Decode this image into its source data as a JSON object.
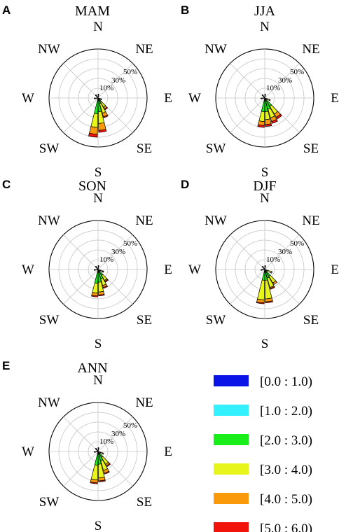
{
  "chart_data": [
    {
      "type": "windrose",
      "panel": "A",
      "title": "MAM",
      "directions": [
        "N",
        "NE",
        "E",
        "SE",
        "S",
        "SW",
        "W",
        "NW"
      ],
      "ring_labels": [
        "10%",
        "30%",
        "50%"
      ],
      "rings": [
        10,
        20,
        30,
        40,
        50
      ],
      "rmax": 50,
      "petals": [
        {
          "direction": "SSW",
          "angle": 187.5,
          "cum": [
            1,
            3,
            16,
            30,
            37,
            40
          ]
        },
        {
          "direction": "S",
          "angle": 172.5,
          "cum": [
            1,
            3,
            14,
            26,
            33,
            35
          ]
        },
        {
          "direction": "SSE",
          "angle": 157.5,
          "cum": [
            1,
            2,
            6,
            16,
            20,
            21
          ]
        },
        {
          "direction": "SE",
          "angle": 142.5,
          "cum": [
            1,
            2,
            5,
            11,
            13,
            14
          ]
        },
        {
          "direction": "E",
          "angle": 112.5,
          "cum": [
            0.5,
            1,
            2,
            3,
            3.5,
            4
          ]
        },
        {
          "direction": "N",
          "angle": 7.5,
          "cum": [
            0.5,
            1,
            2,
            3,
            3.5,
            4
          ]
        },
        {
          "direction": "NW",
          "angle": 322.5,
          "cum": [
            0.5,
            1,
            2,
            3,
            3.5,
            4
          ]
        },
        {
          "direction": "W",
          "angle": 262.5,
          "cum": [
            0.5,
            1,
            2,
            3,
            3.5,
            4
          ]
        }
      ]
    },
    {
      "type": "windrose",
      "panel": "B",
      "title": "JJA",
      "directions": [
        "N",
        "NE",
        "E",
        "SE",
        "S",
        "SW",
        "W",
        "NW"
      ],
      "ring_labels": [
        "10%",
        "30%",
        "50%"
      ],
      "rings": [
        10,
        20,
        30,
        40,
        50
      ],
      "rmax": 50,
      "petals": [
        {
          "direction": "SSW",
          "angle": 187.5,
          "cum": [
            1,
            3,
            14,
            24,
            28,
            30
          ]
        },
        {
          "direction": "S",
          "angle": 172.5,
          "cum": [
            1,
            3,
            14,
            22,
            27,
            29
          ]
        },
        {
          "direction": "SSE",
          "angle": 157.5,
          "cum": [
            1,
            2,
            12,
            21,
            25,
            27
          ]
        },
        {
          "direction": "SE",
          "angle": 142.5,
          "cum": [
            1,
            2,
            10,
            19,
            23,
            25
          ]
        },
        {
          "direction": "E",
          "angle": 112.5,
          "cum": [
            0.5,
            1,
            3,
            5,
            6,
            6
          ]
        },
        {
          "direction": "N",
          "angle": 7.5,
          "cum": [
            0.5,
            1,
            2,
            3,
            3.5,
            4
          ]
        },
        {
          "direction": "NW",
          "angle": 322.5,
          "cum": [
            0.5,
            1,
            2,
            3,
            3.5,
            4
          ]
        },
        {
          "direction": "W",
          "angle": 262.5,
          "cum": [
            0.5,
            1,
            2,
            3,
            3.5,
            4
          ]
        }
      ]
    },
    {
      "type": "windrose",
      "panel": "C",
      "title": "SON",
      "directions": [
        "N",
        "NE",
        "E",
        "SE",
        "S",
        "SW",
        "W",
        "NW"
      ],
      "ring_labels": [
        "10%",
        "30%",
        "50%"
      ],
      "rings": [
        10,
        20,
        30,
        40,
        50
      ],
      "rmax": 50,
      "petals": [
        {
          "direction": "SSW",
          "angle": 187.5,
          "cum": [
            1,
            3,
            14,
            24,
            27,
            28
          ]
        },
        {
          "direction": "S",
          "angle": 172.5,
          "cum": [
            1,
            3,
            13,
            23,
            26,
            27
          ]
        },
        {
          "direction": "SSE",
          "angle": 157.5,
          "cum": [
            1,
            2,
            10,
            17,
            19,
            20
          ]
        },
        {
          "direction": "SE",
          "angle": 142.5,
          "cum": [
            1,
            2,
            7,
            13,
            14,
            15
          ]
        },
        {
          "direction": "E",
          "angle": 112.5,
          "cum": [
            0.5,
            1,
            3,
            5,
            5.5,
            6
          ]
        },
        {
          "direction": "N",
          "angle": 7.5,
          "cum": [
            0.5,
            1,
            2,
            3,
            3.5,
            4
          ]
        },
        {
          "direction": "NW",
          "angle": 322.5,
          "cum": [
            0.5,
            1,
            2,
            3,
            3.5,
            4
          ]
        },
        {
          "direction": "W",
          "angle": 262.5,
          "cum": [
            0.5,
            1,
            2,
            3,
            3.5,
            4
          ]
        }
      ]
    },
    {
      "type": "windrose",
      "panel": "D",
      "title": "DJF",
      "directions": [
        "N",
        "NE",
        "E",
        "SE",
        "S",
        "SW",
        "W",
        "NW"
      ],
      "ring_labels": [
        "10%",
        "30%",
        "50%"
      ],
      "rings": [
        10,
        20,
        30,
        40,
        50
      ],
      "rmax": 50,
      "petals": [
        {
          "direction": "SSW",
          "angle": 187.5,
          "cum": [
            1,
            3,
            11,
            31,
            34,
            35
          ]
        },
        {
          "direction": "S",
          "angle": 172.5,
          "cum": [
            1,
            3,
            11,
            30,
            33,
            34
          ]
        },
        {
          "direction": "SSE",
          "angle": 157.5,
          "cum": [
            1,
            2,
            9,
            19,
            20,
            21
          ]
        },
        {
          "direction": "SE",
          "angle": 142.5,
          "cum": [
            1,
            2,
            8,
            16,
            18,
            18
          ]
        },
        {
          "direction": "E",
          "angle": 112.5,
          "cum": [
            0.5,
            1,
            3,
            7,
            8,
            8
          ]
        },
        {
          "direction": "N",
          "angle": 7.5,
          "cum": [
            0.5,
            1,
            2,
            3,
            3.5,
            4
          ]
        },
        {
          "direction": "NW",
          "angle": 322.5,
          "cum": [
            0.5,
            1,
            2,
            3,
            3.5,
            4
          ]
        },
        {
          "direction": "W",
          "angle": 262.5,
          "cum": [
            0.5,
            1,
            2,
            3,
            3.5,
            4
          ]
        }
      ]
    },
    {
      "type": "windrose",
      "panel": "E",
      "title": "ANN",
      "directions": [
        "N",
        "NE",
        "E",
        "SE",
        "S",
        "SW",
        "W",
        "NW"
      ],
      "ring_labels": [
        "10%",
        "30%",
        "50%"
      ],
      "rings": [
        10,
        20,
        30,
        40,
        50
      ],
      "rmax": 50,
      "petals": [
        {
          "direction": "SSW",
          "angle": 187.5,
          "cum": [
            1,
            3,
            14,
            29,
            32,
            33
          ]
        },
        {
          "direction": "S",
          "angle": 172.5,
          "cum": [
            1,
            3,
            13,
            27,
            30,
            31
          ]
        },
        {
          "direction": "SSE",
          "angle": 157.5,
          "cum": [
            1,
            2,
            10,
            20,
            23,
            24
          ]
        },
        {
          "direction": "SE",
          "angle": 142.5,
          "cum": [
            1,
            2,
            7,
            15,
            17,
            18
          ]
        },
        {
          "direction": "E",
          "angle": 112.5,
          "cum": [
            0.5,
            1,
            3,
            5,
            6,
            6
          ]
        },
        {
          "direction": "N",
          "angle": 7.5,
          "cum": [
            0.5,
            1,
            2,
            3,
            3.5,
            4
          ]
        },
        {
          "direction": "NW",
          "angle": 322.5,
          "cum": [
            0.5,
            1,
            2,
            3,
            3.5,
            4
          ]
        },
        {
          "direction": "W",
          "angle": 262.5,
          "cum": [
            0.5,
            1,
            2,
            3,
            3.5,
            4
          ]
        }
      ]
    }
  ],
  "legend": {
    "entries": [
      {
        "label": "[0.0 : 1.0)",
        "color": "#0a14e6"
      },
      {
        "label": "[1.0 : 2.0)",
        "color": "#33f0ff"
      },
      {
        "label": "[2.0 : 3.0)",
        "color": "#1aee1a"
      },
      {
        "label": "[3.0 : 4.0)",
        "color": "#e8f51a"
      },
      {
        "label": "[4.0 : 5.0)",
        "color": "#fa9a0a"
      },
      {
        "label": "[5.0 : 6.0)",
        "color": "#f0140a"
      }
    ]
  }
}
